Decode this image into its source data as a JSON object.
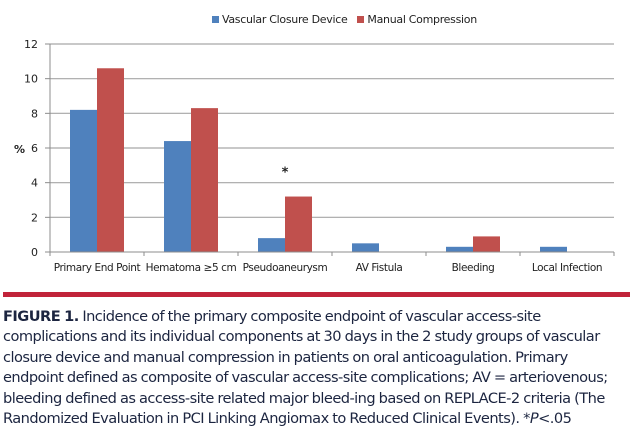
{
  "chart_data": {
    "type": "bar",
    "title": "",
    "xlabel": "",
    "ylabel": "%",
    "ylim": [
      0,
      12
    ],
    "yticks": [
      0,
      2,
      4,
      6,
      8,
      10,
      12
    ],
    "grid": true,
    "legend_position": "top-center",
    "categories": [
      "Primary End Point",
      "Hematoma ≥5 cm",
      "Pseudoaneurysm",
      "AV Fistula",
      "Bleeding",
      "Local Infection"
    ],
    "series": [
      {
        "name": "Vascular Closure Device",
        "color": "#4f81bd",
        "values": [
          8.2,
          6.4,
          0.8,
          0.5,
          0.3,
          0.3
        ]
      },
      {
        "name": "Manual Compression",
        "color": "#c0504d",
        "values": [
          10.6,
          8.3,
          3.2,
          0,
          0.9,
          0
        ]
      }
    ],
    "annotations": [
      {
        "category": "Pseudoaneurysm",
        "text": "*"
      }
    ]
  },
  "caption": {
    "rule_color": "#c1233a",
    "label": "FIGURE 1.",
    "text": " Incidence of the primary composite endpoint of vascular access-site complications and its individual components at 30 days in the 2 study groups of vascular closure device and manual compression in patients on oral anticoagulation. Primary endpoint defined as composite of vascular access-site complications; AV = arteriovenous; bleeding defined as access-site related major bleed-ing based on REPLACE-2 criteria (The Randomized Evaluation in PCI Linking Angiomax to Reduced Clinical Events). *",
    "p_label": "P",
    "p_value": "<.05"
  }
}
